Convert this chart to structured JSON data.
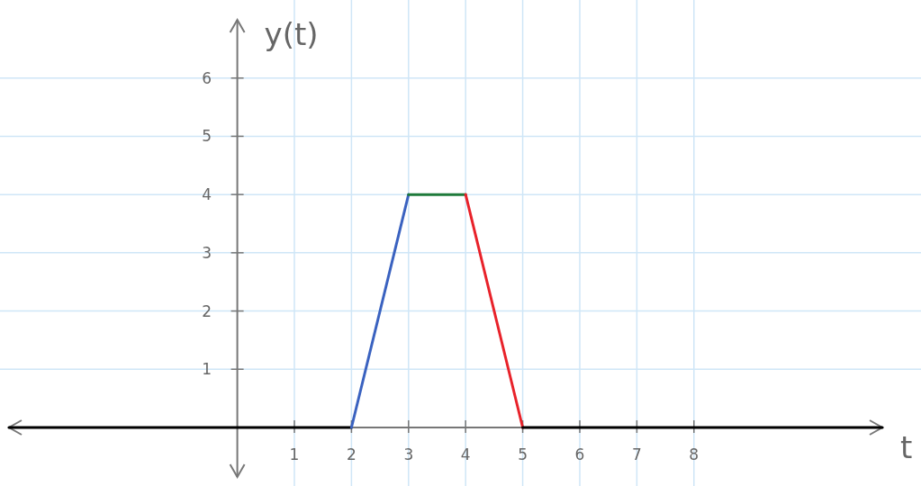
{
  "chart_data": {
    "type": "line",
    "xlabel": "t",
    "ylabel": "y(t)",
    "xlim": [
      -4,
      11.3
    ],
    "ylim": [
      -0.85,
      7
    ],
    "xticks": [
      1,
      2,
      3,
      4,
      5,
      6,
      7,
      8
    ],
    "yticks": [
      1,
      2,
      3,
      4,
      5,
      6
    ],
    "grid": true,
    "series": [
      {
        "color": "#000000",
        "x": [
          -4,
          2
        ],
        "values": [
          0,
          0
        ]
      },
      {
        "color": "#3a62c0",
        "x": [
          2,
          3
        ],
        "values": [
          0,
          4
        ]
      },
      {
        "color": "#1e7a3a",
        "x": [
          3,
          4
        ],
        "values": [
          4,
          4
        ]
      },
      {
        "color": "#e8222a",
        "x": [
          4,
          5
        ],
        "values": [
          4,
          0
        ]
      },
      {
        "color": "#000000",
        "x": [
          5,
          11.3
        ],
        "values": [
          0,
          0
        ]
      }
    ]
  }
}
